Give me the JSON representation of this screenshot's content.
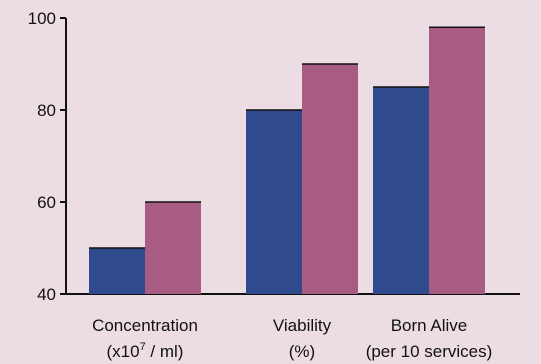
{
  "chart_data": {
    "type": "bar",
    "categories": [
      {
        "line1": "Concentration",
        "line2_pre": "(x10",
        "line2_sup": "7",
        "line2_post": " / ml)"
      },
      {
        "line1": "Viability",
        "line2_pre": "(%)",
        "line2_sup": "",
        "line2_post": ""
      },
      {
        "line1": "Born Alive",
        "line2_pre": "(per 10 services)",
        "line2_sup": "",
        "line2_post": ""
      }
    ],
    "series": [
      {
        "values": [
          50,
          80,
          85
        ],
        "color": "#2f4b8d"
      },
      {
        "values": [
          60,
          90,
          98
        ],
        "color": "#a85c83"
      }
    ],
    "ylim": [
      40,
      100
    ],
    "yticks": [
      40,
      60,
      80,
      100
    ],
    "grid": false,
    "axis_color": "#111111",
    "title": "",
    "xlabel": "",
    "ylabel": ""
  }
}
